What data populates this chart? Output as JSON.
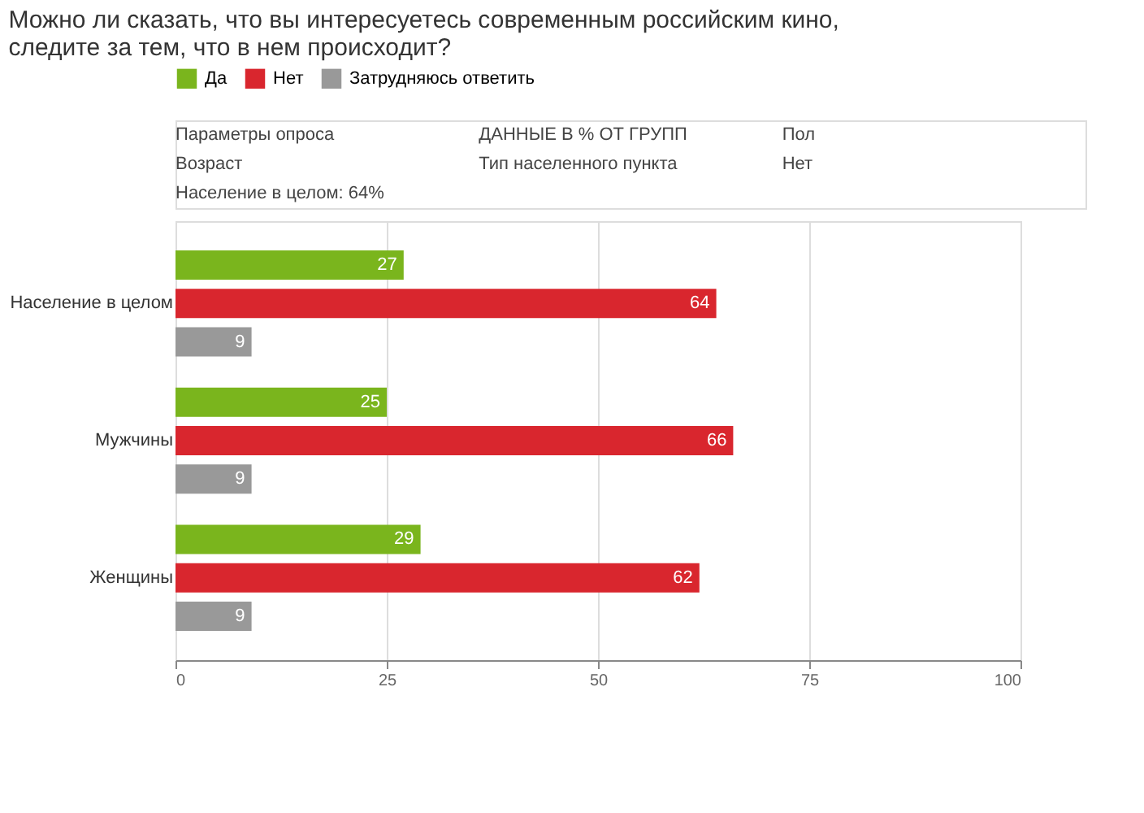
{
  "chart_data": {
    "type": "bar",
    "orientation": "horizontal",
    "title": "Можно ли сказать, что вы интересуетесь современным российским кино, следите за тем, что в нем происходит?",
    "annotations": [
      "Параметры опроса",
      "ДАННЫЕ В % ОТ ГРУПП",
      "Пол",
      "Возраст",
      "Тип населенного пункта",
      "Нет",
      "Население в целом: 64%"
    ],
    "categories": [
      "Население в целом",
      "Мужчины",
      "Женщины"
    ],
    "series": [
      {
        "name": "Да",
        "color": "#7ab51d",
        "values": [
          27,
          25,
          29
        ]
      },
      {
        "name": "Нет",
        "color": "#d9262e",
        "values": [
          64,
          66,
          62
        ]
      },
      {
        "name": "Затрудняюсь ответить",
        "color": "#999999",
        "values": [
          9,
          9,
          9
        ]
      }
    ],
    "xlim": [
      0,
      100
    ],
    "xticks": [
      0,
      25,
      50,
      75,
      100
    ],
    "grid": "x",
    "legend": "top left",
    "data_labels": true
  }
}
